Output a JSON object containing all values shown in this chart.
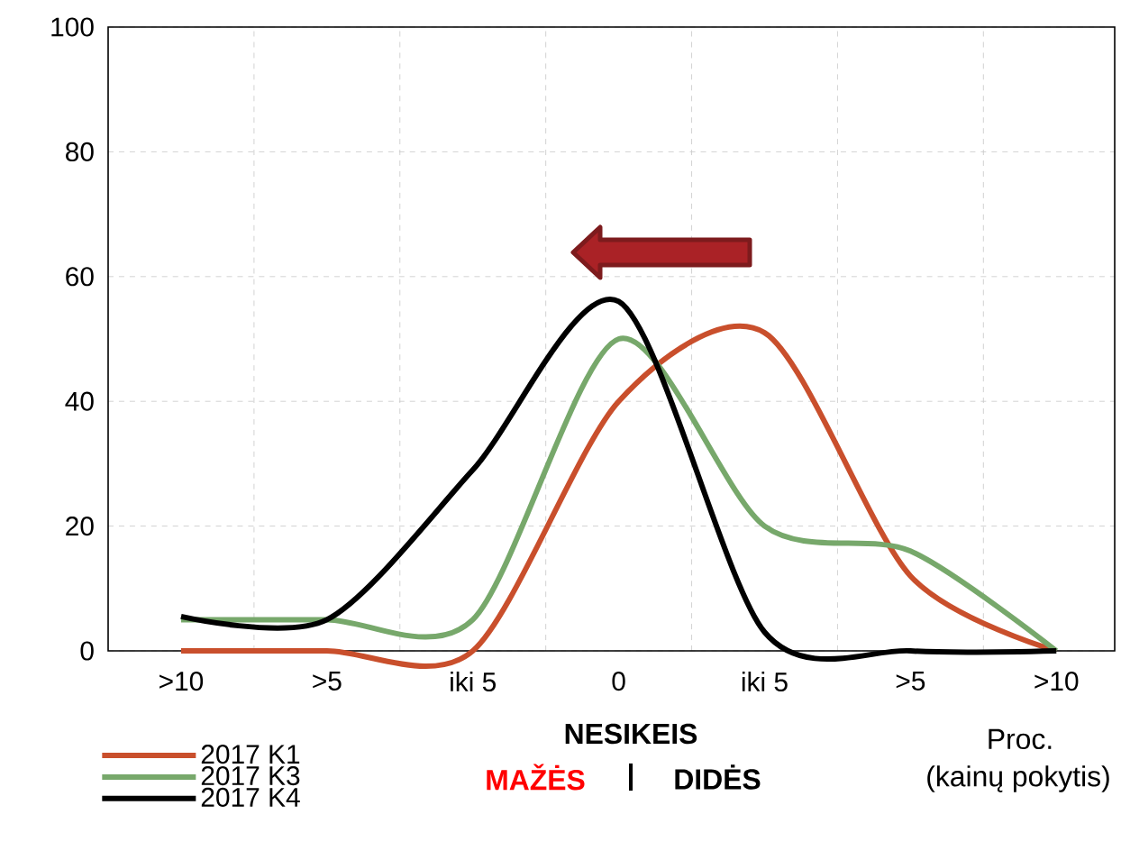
{
  "chart_data": {
    "type": "line",
    "categories": [
      ">10",
      ">5",
      "iki 5",
      "0",
      "iki 5",
      ">5",
      ">10"
    ],
    "series": [
      {
        "name": "2017 K1",
        "color": "#c94f2c",
        "values": [
          0,
          0,
          0,
          40,
          51,
          12,
          0
        ]
      },
      {
        "name": "2017 K3",
        "color": "#77a86b",
        "values": [
          5,
          5,
          5,
          50,
          20,
          16,
          0
        ]
      },
      {
        "name": "2017 K4",
        "color": "#000000",
        "values": [
          5.5,
          5,
          29,
          56,
          3,
          0,
          0
        ]
      }
    ],
    "ylim": [
      0,
      100
    ],
    "yticks": [
      0,
      20,
      40,
      60,
      80,
      100
    ],
    "grid": true,
    "legend": "bottom left",
    "annotations": [
      "NESIKEIS",
      "MAŽĖS",
      "|",
      "DIDĖS",
      "Proc.",
      "(kainų pokytis)"
    ]
  }
}
